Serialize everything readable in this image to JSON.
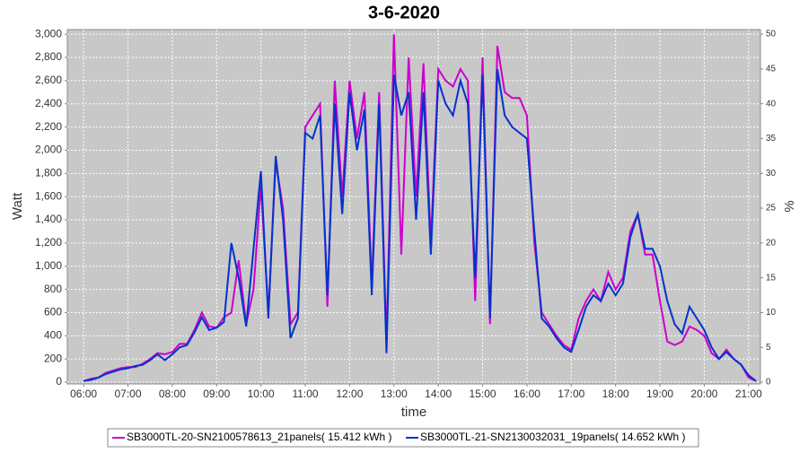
{
  "chart_data": {
    "type": "line",
    "title": "3-6-2020",
    "x_label": "time",
    "y_label": "Watt",
    "y2_label": "%",
    "x": [
      "06:00",
      "06:10",
      "06:20",
      "06:30",
      "06:40",
      "06:50",
      "07:00",
      "07:10",
      "07:20",
      "07:30",
      "07:40",
      "07:50",
      "08:00",
      "08:10",
      "08:20",
      "08:30",
      "08:40",
      "08:50",
      "09:00",
      "09:10",
      "09:20",
      "09:30",
      "09:40",
      "09:50",
      "10:00",
      "10:10",
      "10:20",
      "10:30",
      "10:40",
      "10:50",
      "11:00",
      "11:10",
      "11:20",
      "11:30",
      "11:40",
      "11:50",
      "12:00",
      "12:10",
      "12:20",
      "12:30",
      "12:40",
      "12:50",
      "13:00",
      "13:10",
      "13:20",
      "13:30",
      "13:40",
      "13:50",
      "14:00",
      "14:10",
      "14:20",
      "14:30",
      "14:40",
      "14:50",
      "15:00",
      "15:10",
      "15:20",
      "15:30",
      "15:40",
      "15:50",
      "16:00",
      "16:10",
      "16:20",
      "16:30",
      "16:40",
      "16:50",
      "17:00",
      "17:10",
      "17:20",
      "17:30",
      "17:40",
      "17:50",
      "18:00",
      "18:10",
      "18:20",
      "18:30",
      "18:40",
      "18:50",
      "19:00",
      "19:10",
      "19:20",
      "19:30",
      "19:40",
      "19:50",
      "20:00",
      "20:10",
      "20:20",
      "20:30",
      "20:40",
      "20:50",
      "21:00",
      "21:10"
    ],
    "series": [
      {
        "name": "SB3000TL-20-SN2100578613_21panels( 15.412 kWh )",
        "color": "#cc00cc",
        "values": [
          10,
          30,
          40,
          80,
          100,
          120,
          130,
          130,
          160,
          200,
          250,
          240,
          260,
          330,
          330,
          450,
          600,
          480,
          470,
          560,
          600,
          1050,
          500,
          800,
          1700,
          600,
          1900,
          1500,
          500,
          600,
          2200,
          2300,
          2400,
          650,
          2600,
          1600,
          2600,
          2100,
          2500,
          850,
          2500,
          350,
          3000,
          1100,
          2800,
          1600,
          2750,
          1200,
          2700,
          2600,
          2550,
          2700,
          2600,
          700,
          2800,
          500,
          2900,
          2500,
          2450,
          2450,
          2300,
          1200,
          600,
          500,
          400,
          320,
          280,
          550,
          700,
          800,
          700,
          950,
          800,
          900,
          1300,
          1450,
          1100,
          1100,
          700,
          350,
          320,
          350,
          480,
          450,
          400,
          250,
          200,
          280,
          200,
          150,
          40,
          10
        ]
      },
      {
        "name": "SB3000TL-21-SN2130032031_19panels( 14.652 kWh )",
        "color": "#0033cc",
        "values": [
          10,
          20,
          40,
          70,
          90,
          110,
          120,
          140,
          150,
          190,
          240,
          190,
          240,
          300,
          320,
          430,
          560,
          450,
          470,
          520,
          1200,
          900,
          480,
          1150,
          1820,
          550,
          1950,
          1400,
          380,
          550,
          2150,
          2100,
          2300,
          750,
          2400,
          1450,
          2500,
          2000,
          2350,
          750,
          2400,
          250,
          2650,
          2300,
          2500,
          1400,
          2500,
          1100,
          2600,
          2400,
          2300,
          2600,
          2400,
          900,
          2650,
          550,
          2700,
          2300,
          2200,
          2150,
          2100,
          1300,
          550,
          480,
          380,
          300,
          260,
          450,
          650,
          750,
          700,
          850,
          750,
          850,
          1250,
          1450,
          1150,
          1150,
          1000,
          700,
          500,
          420,
          650,
          550,
          450,
          300,
          200,
          260,
          200,
          150,
          60,
          10
        ]
      }
    ],
    "xlim": [
      "05:38",
      "21:16"
    ],
    "xticks": [
      "06:00",
      "07:00",
      "08:00",
      "09:00",
      "10:00",
      "11:00",
      "12:00",
      "13:00",
      "14:00",
      "15:00",
      "16:00",
      "17:00",
      "18:00",
      "19:00",
      "20:00",
      "21:00"
    ],
    "ylim": [
      -15,
      3040
    ],
    "yticks": [
      0,
      200,
      400,
      600,
      800,
      {
        "value": 1000,
        "label": "1,000"
      },
      {
        "value": 1200,
        "label": "1,200"
      },
      {
        "value": 1400,
        "label": "1,400"
      },
      {
        "value": 1600,
        "label": "1,600"
      },
      {
        "value": 1800,
        "label": "1,800"
      },
      {
        "value": 2000,
        "label": "2,000"
      },
      {
        "value": 2200,
        "label": "2,200"
      },
      {
        "value": 2400,
        "label": "2,400"
      },
      {
        "value": 2600,
        "label": "2,600"
      },
      {
        "value": 2800,
        "label": "2,800"
      },
      {
        "value": 3000,
        "label": "3,000"
      }
    ],
    "y2lim": [
      -0.25,
      50.65
    ],
    "y2ticks": [
      0,
      5,
      10,
      15,
      20,
      25,
      30,
      35,
      40,
      45,
      50
    ],
    "grid": true
  }
}
